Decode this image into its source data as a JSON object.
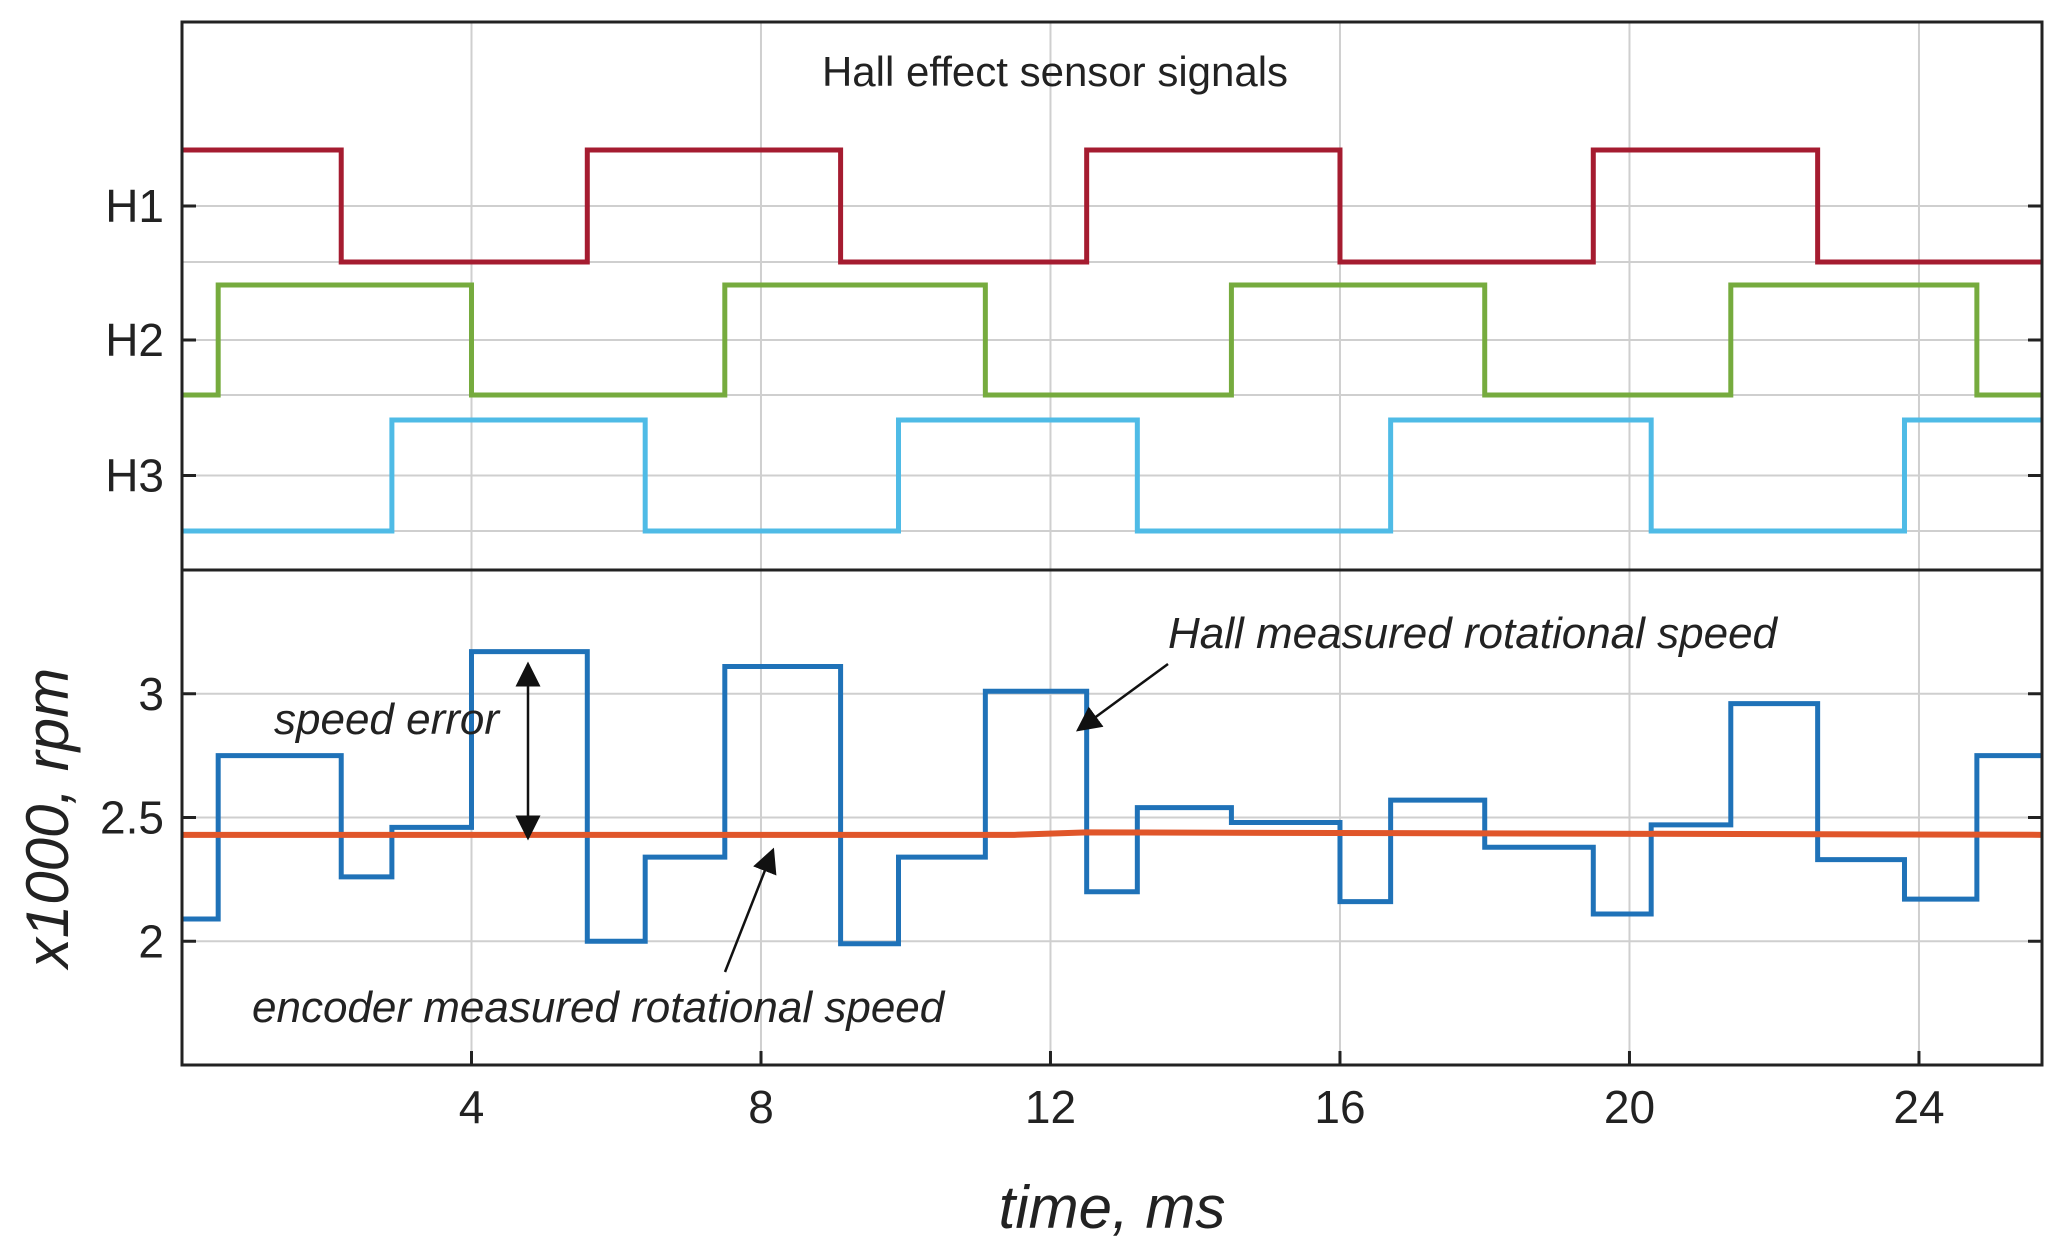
{
  "chart_data": [
    {
      "type": "line",
      "title": "Hall effect sensor signals",
      "xlim": [
        0.0,
        25.7
      ],
      "ylabel_ticks": [
        "H1",
        "H2",
        "H3"
      ],
      "grid": true,
      "series": [
        {
          "name": "H1",
          "color": "#a51c30",
          "edges": [
            2.2,
            5.6,
            9.1,
            12.5,
            16.0,
            19.5,
            22.6
          ],
          "initial": "high"
        },
        {
          "name": "H2",
          "color": "#76ab3e",
          "edges": [
            0.5,
            4.0,
            7.5,
            11.1,
            14.5,
            18.0,
            21.4,
            24.8
          ],
          "initial": "low"
        },
        {
          "name": "H3",
          "color": "#4fbbe6",
          "edges": [
            2.9,
            6.4,
            9.9,
            13.2,
            16.7,
            20.3,
            23.8
          ],
          "initial": "low"
        }
      ]
    },
    {
      "type": "line",
      "xlabel": "time, ms",
      "ylabel": "x1000, rpm",
      "xlim": [
        0.0,
        25.7
      ],
      "ylim": [
        1.5,
        3.5
      ],
      "xticks": [
        "4",
        "8",
        "12",
        "16",
        "20",
        "24"
      ],
      "yticks": [
        "2",
        "2.5",
        "3"
      ],
      "grid": true,
      "series": [
        {
          "name": "Hall measured rotational speed",
          "color": "#1f72b8",
          "x": [
            0.0,
            0.5,
            0.5,
            2.2,
            2.2,
            2.9,
            2.9,
            4.0,
            4.0,
            5.6,
            5.6,
            6.4,
            6.4,
            7.5,
            7.5,
            9.1,
            9.1,
            9.9,
            9.9,
            11.1,
            11.1,
            12.5,
            12.5,
            13.2,
            13.2,
            14.5,
            14.5,
            16.0,
            16.0,
            16.7,
            16.7,
            18.0,
            18.0,
            19.5,
            19.5,
            20.3,
            20.3,
            21.4,
            21.4,
            22.6,
            22.6,
            23.8,
            23.8,
            24.8,
            24.8,
            25.7
          ],
          "y": [
            2.09,
            2.09,
            2.75,
            2.75,
            2.26,
            2.26,
            2.46,
            2.46,
            3.17,
            3.17,
            2.0,
            2.0,
            2.34,
            2.34,
            3.11,
            3.11,
            1.99,
            1.99,
            2.34,
            2.34,
            3.01,
            3.01,
            2.2,
            2.2,
            2.54,
            2.54,
            2.48,
            2.48,
            2.16,
            2.16,
            2.57,
            2.57,
            2.38,
            2.38,
            2.11,
            2.11,
            2.47,
            2.47,
            2.96,
            2.96,
            2.33,
            2.33,
            2.17,
            2.17,
            2.75,
            2.75
          ]
        },
        {
          "name": "encoder measured rotational speed",
          "color": "#e0562a",
          "x": [
            0.0,
            11.5,
            12.5,
            25.7
          ],
          "y": [
            2.43,
            2.43,
            2.44,
            2.43
          ]
        }
      ],
      "annotations": [
        {
          "text": "Hall measured rotational speed"
        },
        {
          "text": "speed error"
        },
        {
          "text": "encoder measured rotational speed"
        }
      ]
    }
  ]
}
